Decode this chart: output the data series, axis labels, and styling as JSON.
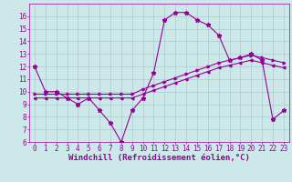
{
  "xlabel": "Windchill (Refroidissement éolien,°C)",
  "background_color": "#cce8e8",
  "line_color": "#990099",
  "xlim": [
    -0.5,
    23.5
  ],
  "ylim": [
    6,
    17
  ],
  "yticks": [
    6,
    7,
    8,
    9,
    10,
    11,
    12,
    13,
    14,
    15,
    16
  ],
  "xticks": [
    0,
    1,
    2,
    3,
    4,
    5,
    6,
    7,
    8,
    9,
    10,
    11,
    12,
    13,
    14,
    15,
    16,
    17,
    18,
    19,
    20,
    21,
    22,
    23
  ],
  "series1_x": [
    0,
    1,
    2,
    3,
    4,
    5,
    6,
    7,
    8,
    9,
    10,
    11,
    12,
    13,
    14,
    15,
    16,
    17,
    18,
    19,
    20,
    21,
    22,
    23
  ],
  "series1_y": [
    12.0,
    10.0,
    10.0,
    9.5,
    9.0,
    9.5,
    8.5,
    7.5,
    6.0,
    8.5,
    9.5,
    11.5,
    15.7,
    16.3,
    16.3,
    15.7,
    15.3,
    14.5,
    12.5,
    12.7,
    13.0,
    12.5,
    7.8,
    8.5
  ],
  "series2_x": [
    0,
    1,
    2,
    3,
    4,
    5,
    6,
    7,
    8,
    9,
    10,
    11,
    12,
    13,
    14,
    15,
    16,
    17,
    18,
    19,
    20,
    21,
    22,
    23
  ],
  "series2_y": [
    9.8,
    9.8,
    9.8,
    9.8,
    9.8,
    9.8,
    9.8,
    9.8,
    9.8,
    9.8,
    10.2,
    10.5,
    10.8,
    11.1,
    11.4,
    11.7,
    12.0,
    12.3,
    12.5,
    12.7,
    12.9,
    12.7,
    12.5,
    12.3
  ],
  "series3_x": [
    0,
    1,
    2,
    3,
    4,
    5,
    6,
    7,
    8,
    9,
    10,
    11,
    12,
    13,
    14,
    15,
    16,
    17,
    18,
    19,
    20,
    21,
    22,
    23
  ],
  "series3_y": [
    9.5,
    9.5,
    9.5,
    9.5,
    9.5,
    9.5,
    9.5,
    9.5,
    9.5,
    9.5,
    9.8,
    10.1,
    10.4,
    10.7,
    11.0,
    11.3,
    11.6,
    11.9,
    12.1,
    12.3,
    12.5,
    12.3,
    12.1,
    11.9
  ],
  "grid_color": "#aacccc",
  "tick_fontsize": 5.5,
  "label_fontsize": 6.5
}
